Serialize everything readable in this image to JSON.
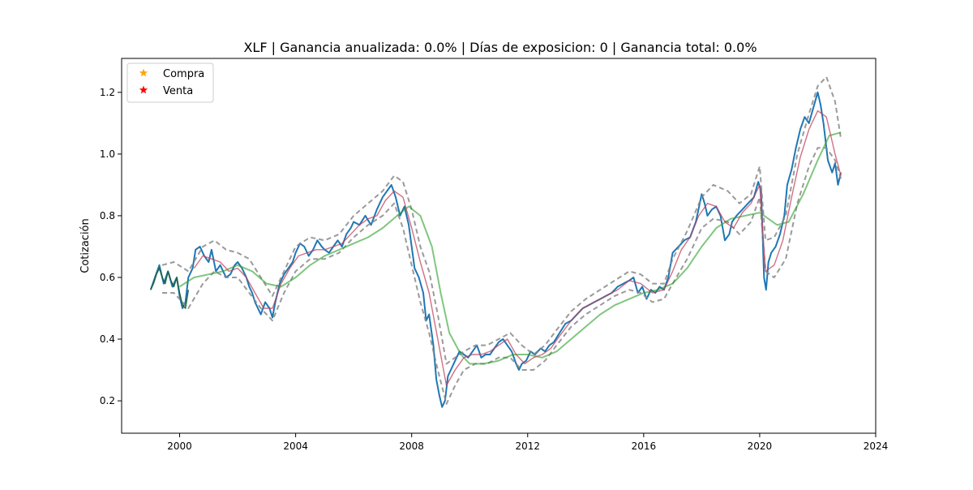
{
  "chart_data": {
    "type": "line",
    "title": "XLF | Ganancia anualizada:   0.0% | Días de exposicion:      0 | Ganancia total:   0.0%",
    "xlabel": "",
    "ylabel": "Cotización",
    "xlim": [
      1998.0,
      2024.0
    ],
    "ylim": [
      0.095,
      1.31
    ],
    "x_ticks": [
      2000,
      2004,
      2008,
      2012,
      2016,
      2020,
      2024
    ],
    "y_ticks": [
      0.2,
      0.4,
      0.6,
      0.8,
      1.0,
      1.2
    ],
    "grid": false,
    "legend": {
      "position": "upper-left",
      "entries": [
        {
          "label": "Compra",
          "marker": "star",
          "color": "#ffa500"
        },
        {
          "label": "Venta",
          "marker": "star",
          "color": "#ff0000"
        }
      ]
    },
    "series": [
      {
        "style": "price",
        "color": "#1f77b4",
        "x": [
          1999.0,
          1999.15,
          1999.3,
          1999.45,
          1999.6,
          1999.75,
          1999.9,
          2000.0,
          2000.1,
          2000.2,
          2000.3,
          2000.45,
          2000.55,
          2000.7,
          2000.85,
          2001.0,
          2001.1,
          2001.25,
          2001.4,
          2001.6,
          2001.75,
          2001.9,
          2002.0,
          2002.15,
          2002.3,
          2002.4,
          2002.5,
          2002.6,
          2002.7,
          2002.8,
          2002.95,
          2003.1,
          2003.2,
          2003.3,
          2003.45,
          2003.6,
          2003.75,
          2003.9,
          2004.0,
          2004.15,
          2004.3,
          2004.45,
          2004.6,
          2004.75,
          2004.9,
          2005.0,
          2005.15,
          2005.3,
          2005.45,
          2005.6,
          2005.75,
          2005.9,
          2006.0,
          2006.2,
          2006.4,
          2006.6,
          2006.8,
          2007.0,
          2007.15,
          2007.3,
          2007.45,
          2007.6,
          2007.75,
          2007.9,
          2008.0,
          2008.1,
          2008.25,
          2008.4,
          2008.5,
          2008.6,
          2008.75,
          2008.85,
          2008.95,
          2009.05,
          2009.15,
          2009.25,
          2009.35,
          2009.5,
          2009.65,
          2009.8,
          2009.95,
          2010.1,
          2010.25,
          2010.4,
          2010.55,
          2010.7,
          2010.85,
          2011.0,
          2011.15,
          2011.3,
          2011.45,
          2011.6,
          2011.7,
          2011.8,
          2011.95,
          2012.1,
          2012.25,
          2012.45,
          2012.6,
          2012.75,
          2012.9,
          2013.1,
          2013.3,
          2013.5,
          2013.7,
          2013.9,
          2014.1,
          2014.3,
          2014.5,
          2014.7,
          2014.9,
          2015.1,
          2015.3,
          2015.5,
          2015.65,
          2015.8,
          2015.95,
          2016.1,
          2016.25,
          2016.4,
          2016.55,
          2016.7,
          2016.85,
          2017.0,
          2017.2,
          2017.4,
          2017.6,
          2017.8,
          2018.0,
          2018.1,
          2018.2,
          2018.35,
          2018.5,
          2018.65,
          2018.8,
          2018.95,
          2019.05,
          2019.2,
          2019.4,
          2019.6,
          2019.8,
          2019.95,
          2020.05,
          2020.15,
          2020.22,
          2020.3,
          2020.4,
          2020.55,
          2020.7,
          2020.85,
          2020.95,
          2021.1,
          2021.25,
          2021.4,
          2021.55,
          2021.7,
          2021.85,
          2022.0,
          2022.1,
          2022.2,
          2022.35,
          2022.5,
          2022.6,
          2022.7,
          2022.8
        ],
        "y": [
          0.56,
          0.6,
          0.64,
          0.58,
          0.62,
          0.57,
          0.6,
          0.54,
          0.5,
          0.52,
          0.6,
          0.63,
          0.69,
          0.7,
          0.67,
          0.65,
          0.69,
          0.62,
          0.64,
          0.6,
          0.61,
          0.64,
          0.65,
          0.63,
          0.6,
          0.57,
          0.55,
          0.52,
          0.5,
          0.48,
          0.52,
          0.5,
          0.47,
          0.52,
          0.58,
          0.61,
          0.63,
          0.65,
          0.68,
          0.71,
          0.7,
          0.67,
          0.69,
          0.72,
          0.7,
          0.69,
          0.68,
          0.7,
          0.72,
          0.7,
          0.74,
          0.76,
          0.78,
          0.77,
          0.8,
          0.77,
          0.82,
          0.86,
          0.88,
          0.9,
          0.86,
          0.8,
          0.83,
          0.77,
          0.7,
          0.63,
          0.6,
          0.55,
          0.46,
          0.48,
          0.38,
          0.27,
          0.22,
          0.18,
          0.2,
          0.28,
          0.3,
          0.33,
          0.36,
          0.35,
          0.34,
          0.36,
          0.38,
          0.34,
          0.35,
          0.35,
          0.37,
          0.39,
          0.4,
          0.38,
          0.36,
          0.32,
          0.3,
          0.32,
          0.33,
          0.36,
          0.35,
          0.37,
          0.36,
          0.38,
          0.39,
          0.42,
          0.45,
          0.46,
          0.48,
          0.5,
          0.51,
          0.52,
          0.53,
          0.54,
          0.55,
          0.57,
          0.58,
          0.59,
          0.6,
          0.55,
          0.57,
          0.53,
          0.56,
          0.55,
          0.57,
          0.56,
          0.6,
          0.68,
          0.7,
          0.72,
          0.73,
          0.78,
          0.87,
          0.84,
          0.8,
          0.82,
          0.83,
          0.8,
          0.72,
          0.74,
          0.78,
          0.8,
          0.82,
          0.84,
          0.86,
          0.91,
          0.88,
          0.6,
          0.56,
          0.65,
          0.68,
          0.7,
          0.74,
          0.8,
          0.9,
          0.95,
          1.02,
          1.08,
          1.12,
          1.1,
          1.15,
          1.2,
          1.16,
          1.1,
          0.98,
          0.94,
          0.97,
          0.9,
          0.94
        ]
      },
      {
        "style": "dashed-upper",
        "color": "#888888",
        "x": [
          1999.4,
          1999.8,
          2000.3,
          2000.8,
          2001.2,
          2001.6,
          2002.0,
          2002.4,
          2002.8,
          2003.2,
          2003.6,
          2004.0,
          2004.5,
          2005.0,
          2005.5,
          2006.0,
          2006.5,
          2007.0,
          2007.4,
          2007.7,
          2008.0,
          2008.3,
          2008.6,
          2008.9,
          2009.2,
          2009.5,
          2009.8,
          2010.2,
          2010.6,
          2011.0,
          2011.4,
          2011.8,
          2012.2,
          2012.6,
          2013.0,
          2013.5,
          2014.0,
          2014.5,
          2015.0,
          2015.5,
          2015.9,
          2016.3,
          2016.7,
          2017.0,
          2017.5,
          2018.0,
          2018.4,
          2018.9,
          2019.3,
          2019.7,
          2020.0,
          2020.2,
          2020.5,
          2020.9,
          2021.3,
          2021.7,
          2022.0,
          2022.3,
          2022.6,
          2022.8
        ],
        "y": [
          0.64,
          0.65,
          0.62,
          0.7,
          0.72,
          0.69,
          0.68,
          0.66,
          0.6,
          0.54,
          0.62,
          0.7,
          0.73,
          0.72,
          0.74,
          0.8,
          0.84,
          0.88,
          0.93,
          0.91,
          0.82,
          0.7,
          0.62,
          0.48,
          0.32,
          0.34,
          0.36,
          0.38,
          0.38,
          0.4,
          0.42,
          0.38,
          0.35,
          0.38,
          0.43,
          0.49,
          0.53,
          0.56,
          0.59,
          0.62,
          0.61,
          0.58,
          0.58,
          0.66,
          0.75,
          0.86,
          0.9,
          0.88,
          0.84,
          0.87,
          0.96,
          0.72,
          0.73,
          0.8,
          1.0,
          1.13,
          1.22,
          1.25,
          1.17,
          1.05
        ]
      },
      {
        "style": "dashed-lower",
        "color": "#888888",
        "x": [
          1999.4,
          1999.8,
          2000.3,
          2000.8,
          2001.2,
          2001.6,
          2002.0,
          2002.4,
          2002.8,
          2003.2,
          2003.6,
          2004.0,
          2004.5,
          2005.0,
          2005.5,
          2006.0,
          2006.5,
          2007.0,
          2007.4,
          2007.7,
          2008.0,
          2008.3,
          2008.6,
          2008.9,
          2009.2,
          2009.5,
          2009.8,
          2010.2,
          2010.6,
          2011.0,
          2011.4,
          2011.8,
          2012.2,
          2012.6,
          2013.0,
          2013.5,
          2014.0,
          2014.5,
          2015.0,
          2015.5,
          2015.9,
          2016.3,
          2016.7,
          2017.0,
          2017.5,
          2018.0,
          2018.4,
          2018.9,
          2019.3,
          2019.7,
          2020.0,
          2020.2,
          2020.5,
          2020.9,
          2021.3,
          2021.7,
          2022.0,
          2022.3,
          2022.6,
          2022.8
        ],
        "y": [
          0.55,
          0.55,
          0.5,
          0.58,
          0.62,
          0.6,
          0.6,
          0.55,
          0.5,
          0.46,
          0.55,
          0.62,
          0.66,
          0.66,
          0.68,
          0.73,
          0.77,
          0.8,
          0.84,
          0.76,
          0.64,
          0.52,
          0.42,
          0.3,
          0.19,
          0.25,
          0.3,
          0.32,
          0.32,
          0.34,
          0.34,
          0.3,
          0.3,
          0.33,
          0.38,
          0.44,
          0.48,
          0.51,
          0.54,
          0.56,
          0.55,
          0.52,
          0.53,
          0.58,
          0.66,
          0.76,
          0.79,
          0.78,
          0.74,
          0.78,
          0.86,
          0.62,
          0.6,
          0.66,
          0.84,
          0.96,
          1.02,
          1.02,
          0.98,
          0.92
        ]
      },
      {
        "style": "moving-average",
        "color": "#2ca02c",
        "x": [
          2000.0,
          2000.5,
          2001.0,
          2001.5,
          2002.0,
          2002.5,
          2003.0,
          2003.5,
          2004.0,
          2004.5,
          2005.0,
          2005.5,
          2006.0,
          2006.5,
          2007.0,
          2007.5,
          2007.9,
          2008.3,
          2008.7,
          2009.0,
          2009.3,
          2009.7,
          2010.0,
          2010.5,
          2011.0,
          2011.5,
          2012.0,
          2012.5,
          2013.0,
          2013.5,
          2014.0,
          2014.5,
          2015.0,
          2015.5,
          2016.0,
          2016.5,
          2017.0,
          2017.5,
          2018.0,
          2018.5,
          2019.0,
          2019.5,
          2020.0,
          2020.3,
          2020.6,
          2021.0,
          2021.5,
          2022.0,
          2022.4,
          2022.8
        ],
        "y": [
          0.57,
          0.6,
          0.61,
          0.62,
          0.64,
          0.62,
          0.58,
          0.57,
          0.6,
          0.64,
          0.67,
          0.69,
          0.71,
          0.73,
          0.76,
          0.8,
          0.83,
          0.8,
          0.7,
          0.55,
          0.42,
          0.35,
          0.32,
          0.32,
          0.33,
          0.35,
          0.35,
          0.34,
          0.36,
          0.4,
          0.44,
          0.48,
          0.51,
          0.53,
          0.55,
          0.56,
          0.58,
          0.63,
          0.7,
          0.76,
          0.79,
          0.8,
          0.81,
          0.79,
          0.77,
          0.78,
          0.87,
          0.98,
          1.06,
          1.07
        ]
      },
      {
        "style": "signal",
        "color": "#c0405a",
        "x": [
          2000.5,
          2000.8,
          2001.1,
          2001.4,
          2001.7,
          2002.0,
          2002.3,
          2002.6,
          2002.9,
          2003.2,
          2003.5,
          2003.8,
          2004.1,
          2004.4,
          2004.7,
          2005.0,
          2005.3,
          2005.6,
          2005.9,
          2006.2,
          2006.5,
          2006.8,
          2007.1,
          2007.4,
          2007.7,
          2008.0,
          2008.3,
          2008.6,
          2008.9,
          2009.2,
          2009.5,
          2009.8,
          2010.1,
          2010.4,
          2010.7,
          2011.0,
          2011.3,
          2011.6,
          2011.9,
          2012.2,
          2012.5,
          2012.8,
          2013.1,
          2013.5,
          2013.9,
          2014.3,
          2014.7,
          2015.1,
          2015.5,
          2015.9,
          2016.3,
          2016.7,
          2017.0,
          2017.3,
          2017.6,
          2017.9,
          2018.2,
          2018.5,
          2018.8,
          2019.1,
          2019.4,
          2019.7,
          2020.0,
          2020.2,
          2020.5,
          2020.8,
          2021.1,
          2021.4,
          2021.7,
          2022.0,
          2022.3,
          2022.6,
          2022.8
        ],
        "y": [
          0.63,
          0.67,
          0.66,
          0.65,
          0.62,
          0.63,
          0.6,
          0.55,
          0.5,
          0.5,
          0.58,
          0.63,
          0.67,
          0.68,
          0.69,
          0.69,
          0.7,
          0.71,
          0.74,
          0.77,
          0.79,
          0.8,
          0.85,
          0.88,
          0.86,
          0.76,
          0.65,
          0.55,
          0.4,
          0.25,
          0.3,
          0.34,
          0.35,
          0.35,
          0.36,
          0.38,
          0.4,
          0.35,
          0.32,
          0.34,
          0.35,
          0.37,
          0.41,
          0.46,
          0.5,
          0.52,
          0.54,
          0.56,
          0.59,
          0.58,
          0.55,
          0.56,
          0.62,
          0.69,
          0.73,
          0.8,
          0.84,
          0.83,
          0.78,
          0.76,
          0.81,
          0.84,
          0.9,
          0.62,
          0.64,
          0.72,
          0.86,
          0.99,
          1.08,
          1.14,
          1.12,
          1.0,
          0.93
        ]
      },
      {
        "style": "signal-dark",
        "color": "#1f5f3a",
        "x": [
          1999.0,
          1999.1,
          1999.2,
          1999.3,
          1999.4,
          1999.5,
          1999.6,
          1999.7,
          1999.8,
          1999.9,
          2000.0,
          2000.1,
          2000.2,
          2000.3
        ],
        "y": [
          0.56,
          0.58,
          0.61,
          0.63,
          0.6,
          0.58,
          0.62,
          0.59,
          0.57,
          0.6,
          0.55,
          0.51,
          0.5,
          0.56
        ]
      }
    ]
  }
}
